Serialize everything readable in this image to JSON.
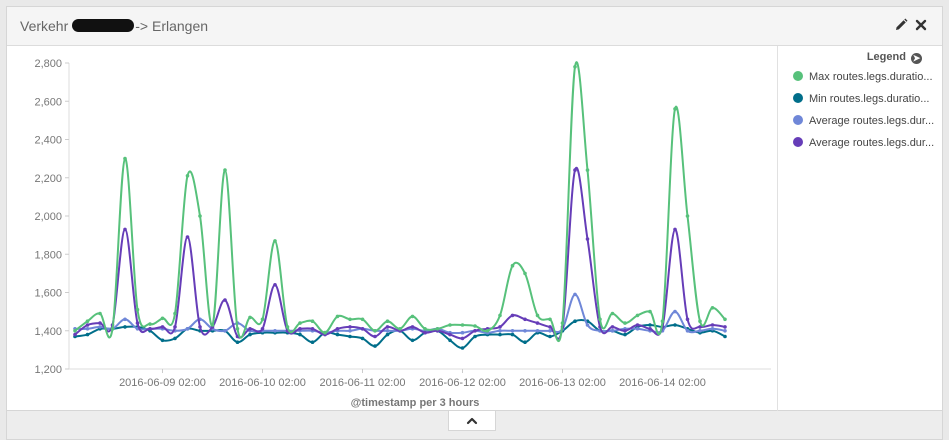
{
  "panel": {
    "title_prefix": "Verkehr",
    "title_suffix": "-> Erlangen"
  },
  "icons": {
    "edit": "pencil-icon",
    "close": "close-icon",
    "legend_toggle": "arrow-right-circle-icon",
    "expand": "chevron-up-icon"
  },
  "legend": {
    "title": "Legend",
    "items": [
      {
        "label": "Max routes.legs.duratio...",
        "color": "#57c17b"
      },
      {
        "label": "Min routes.legs.duratio...",
        "color": "#006e8a"
      },
      {
        "label": "Average routes.legs.dur...",
        "color": "#6f87d8"
      },
      {
        "label": "Average routes.legs.dur...",
        "color": "#663db8"
      }
    ]
  },
  "chart_data": {
    "type": "line",
    "xlabel": "@timestamp per 3 hours",
    "ylabel": "",
    "ylim": [
      1200,
      2800
    ],
    "yticks": [
      1200,
      1400,
      1600,
      1800,
      2000,
      2200,
      2400,
      2600,
      2800
    ],
    "ytick_labels": [
      "1,200",
      "1,400",
      "1,600",
      "1,800",
      "2,000",
      "2,200",
      "2,400",
      "2,600",
      "2,800"
    ],
    "x_start": "2016-06-08 05:00",
    "x_interval_hours": 3,
    "xticks": [
      {
        "label": "2016-06-09 02:00",
        "index": 7
      },
      {
        "label": "2016-06-10 02:00",
        "index": 15
      },
      {
        "label": "2016-06-11 02:00",
        "index": 23
      },
      {
        "label": "2016-06-12 02:00",
        "index": 31
      },
      {
        "label": "2016-06-13 02:00",
        "index": 39
      },
      {
        "label": "2016-06-14 02:00",
        "index": 47
      }
    ],
    "grid": "y",
    "legend_position": "right",
    "series": [
      {
        "name": "Max routes.legs.duratio...",
        "color": "#57c17b",
        "values": [
          1400,
          1450,
          1490,
          1410,
          2300,
          1510,
          1435,
          1465,
          1490,
          2210,
          2000,
          1430,
          2240,
          1410,
          1470,
          1460,
          1870,
          1420,
          1440,
          1450,
          1390,
          1475,
          1460,
          1460,
          1400,
          1450,
          1410,
          1475,
          1410,
          1410,
          1430,
          1430,
          1425,
          1400,
          1480,
          1740,
          1700,
          1480,
          1460,
          1440,
          2780,
          2240,
          1460,
          1490,
          1440,
          1480,
          1500,
          1450,
          2560,
          2000,
          1450,
          1520,
          1460
        ]
      },
      {
        "name": "Min routes.legs.duratio...",
        "color": "#006e8a",
        "values": [
          1370,
          1380,
          1410,
          1410,
          1420,
          1420,
          1400,
          1350,
          1360,
          1410,
          1400,
          1400,
          1400,
          1340,
          1380,
          1390,
          1390,
          1390,
          1380,
          1340,
          1390,
          1380,
          1370,
          1360,
          1320,
          1380,
          1400,
          1350,
          1390,
          1400,
          1350,
          1310,
          1370,
          1380,
          1380,
          1380,
          1340,
          1390,
          1370,
          1400,
          1450,
          1450,
          1400,
          1400,
          1380,
          1420,
          1430,
          1420,
          1430,
          1410,
          1390,
          1400,
          1370
        ]
      },
      {
        "name": "Average routes.legs.dur...",
        "color": "#6f87d8",
        "values": [
          1410,
          1410,
          1420,
          1410,
          1460,
          1410,
          1410,
          1410,
          1400,
          1410,
          1460,
          1410,
          1400,
          1440,
          1400,
          1400,
          1400,
          1400,
          1400,
          1400,
          1390,
          1400,
          1400,
          1410,
          1400,
          1400,
          1400,
          1410,
          1400,
          1410,
          1390,
          1390,
          1400,
          1390,
          1400,
          1400,
          1400,
          1400,
          1400,
          1410,
          1590,
          1430,
          1400,
          1400,
          1410,
          1410,
          1400,
          1400,
          1500,
          1400,
          1400,
          1410,
          1400
        ]
      },
      {
        "name": "Average routes.legs.dur...",
        "color": "#663db8",
        "values": [
          1380,
          1430,
          1440,
          1430,
          1930,
          1440,
          1410,
          1420,
          1420,
          1890,
          1420,
          1420,
          1560,
          1370,
          1410,
          1410,
          1640,
          1400,
          1410,
          1410,
          1380,
          1410,
          1420,
          1410,
          1370,
          1420,
          1400,
          1420,
          1390,
          1400,
          1380,
          1360,
          1400,
          1410,
          1420,
          1480,
          1460,
          1440,
          1420,
          1420,
          2240,
          1880,
          1420,
          1420,
          1400,
          1430,
          1410,
          1420,
          1930,
          1460,
          1420,
          1430,
          1420
        ]
      }
    ]
  }
}
